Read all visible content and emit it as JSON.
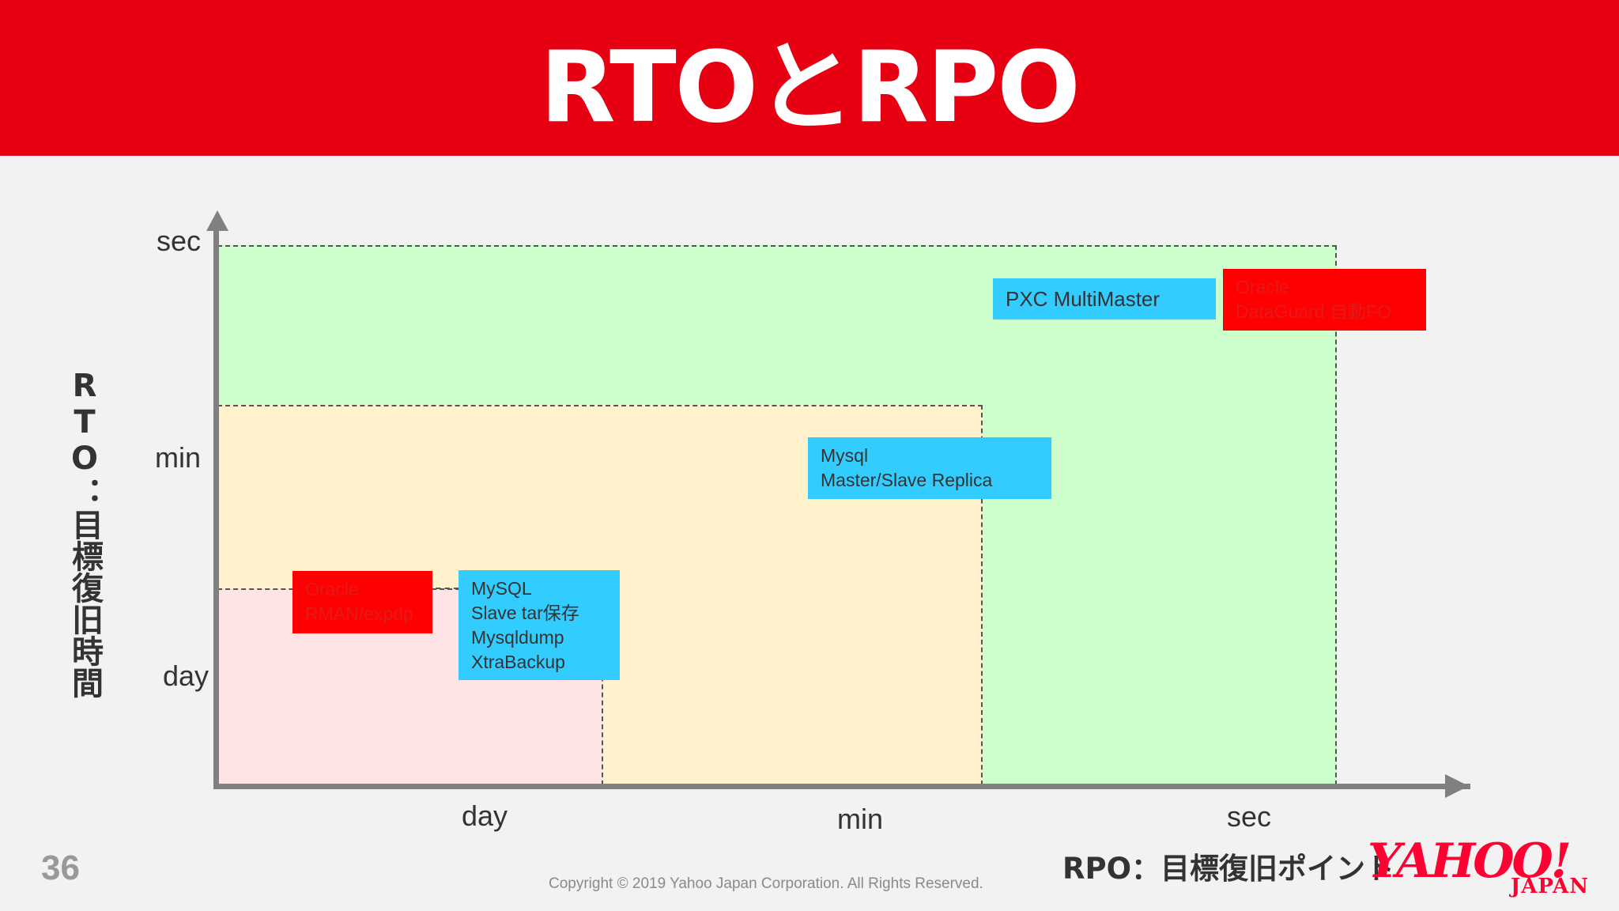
{
  "header": {
    "title": "RTOとRPO"
  },
  "chart_data": {
    "type": "diagram",
    "y_axis_label": "RTO：目標復旧時間",
    "x_axis_label": "RPO：目標復旧ポイント",
    "y_ticks": [
      "sec",
      "min",
      "day"
    ],
    "x_ticks": [
      "day",
      "min",
      "sec"
    ],
    "items": [
      {
        "lines": [
          "PXC MultiMaster"
        ],
        "color": "#33ccff"
      },
      {
        "lines": [
          "Oracle",
          "DataGuard 自動FO"
        ],
        "color": "#ff0000"
      },
      {
        "lines": [
          "Mysql",
          "Master/Slave Replica"
        ],
        "color": "#33ccff"
      },
      {
        "lines": [
          "Oracle",
          "RMAN/expdp"
        ],
        "color": "#ff0000"
      },
      {
        "lines": [
          "MySQL",
          "Slave tar保存",
          "Mysqldump",
          "XtraBackup"
        ],
        "color": "#33ccff"
      }
    ],
    "regions": [
      {
        "color": "#ccffcc"
      },
      {
        "color": "#fff2cc"
      },
      {
        "color": "#ffe4e6"
      }
    ]
  },
  "footer": {
    "page_number": "36",
    "copyright": "Copyright ©  2019  Yahoo Japan Corporation. All Rights Reserved.",
    "logo_main": "YAHOO!",
    "logo_sub": "JAPAN"
  }
}
